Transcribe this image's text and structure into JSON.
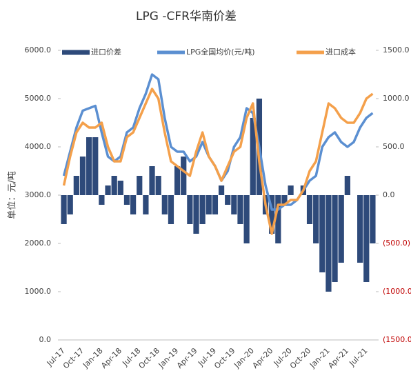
{
  "chart_data": {
    "type": "bar_line",
    "title": "LPG -CFR华南价差",
    "y_label": "单位：元/吨",
    "categories": [
      "Jul-17",
      null,
      null,
      "Oct-17",
      null,
      null,
      "Jan-18",
      null,
      null,
      "Apr-18",
      null,
      null,
      "Jul-18",
      null,
      null,
      "Oct-18",
      null,
      null,
      "Jan-19",
      null,
      null,
      "Apr-19",
      null,
      null,
      "Jul-19",
      null,
      null,
      "Oct-19",
      null,
      null,
      "Jan-20",
      null,
      null,
      "Apr-20",
      null,
      null,
      "Jul-20",
      null,
      null,
      "Oct-20",
      null,
      null,
      "Jan-21",
      null,
      null,
      "Apr-21",
      null,
      null,
      "Jul-21",
      null
    ],
    "series": [
      {
        "name": "进口价差",
        "type": "bar",
        "axis": "y2",
        "color": "#2e4a7a",
        "values": [
          -300,
          -200,
          200,
          400,
          600,
          600,
          -100,
          100,
          200,
          150,
          -100,
          -200,
          200,
          -200,
          300,
          200,
          -200,
          -300,
          300,
          400,
          -300,
          -400,
          -300,
          -200,
          -200,
          100,
          -100,
          -200,
          -300,
          -500,
          800,
          1000,
          -200,
          -400,
          -500,
          -100,
          100,
          0,
          100,
          -300,
          -500,
          -800,
          -1000,
          -900,
          -700,
          200,
          0,
          -700,
          -900,
          -500
        ]
      },
      {
        "name": "LPG全国均价(元/吨)",
        "type": "line",
        "color": "#5b8fd1",
        "values": [
          3400,
          3900,
          4400,
          4750,
          4800,
          4850,
          4300,
          3800,
          3700,
          3800,
          4300,
          4400,
          4800,
          5100,
          5500,
          5400,
          4600,
          4000,
          3900,
          3900,
          3700,
          3800,
          4100,
          3800,
          3600,
          3300,
          3500,
          4000,
          4200,
          4800,
          4700,
          4000,
          3200,
          2700,
          2700,
          2800,
          2800,
          2900,
          3100,
          3300,
          3400,
          4000,
          4200,
          4300,
          4100,
          4000,
          4100,
          4400,
          4600,
          4700
        ]
      },
      {
        "name": "进口成本",
        "type": "line",
        "color": "#f4a04b",
        "values": [
          3200,
          3800,
          4300,
          4500,
          4400,
          4400,
          4500,
          4000,
          3700,
          3700,
          4200,
          4300,
          4600,
          4900,
          5200,
          5000,
          4300,
          3700,
          3600,
          3500,
          3400,
          3900,
          4300,
          3800,
          3600,
          3300,
          3600,
          3900,
          4000,
          4600,
          4900,
          3700,
          2800,
          2200,
          2800,
          2800,
          2900,
          2900,
          3100,
          3500,
          3700,
          4300,
          4900,
          4800,
          4600,
          4500,
          4500,
          4700,
          5000,
          5100
        ]
      }
    ],
    "ylim": [
      0,
      6000
    ],
    "yticks": [
      {
        "value": 0,
        "label": "0.0"
      },
      {
        "value": 1000,
        "label": "1000.0"
      },
      {
        "value": 2000,
        "label": "2000.0"
      },
      {
        "value": 3000,
        "label": "3000.0"
      },
      {
        "value": 4000,
        "label": "4000.0"
      },
      {
        "value": 5000,
        "label": "5000.0"
      },
      {
        "value": 6000,
        "label": "6000.0"
      }
    ],
    "y2lim": [
      -1500,
      1500
    ],
    "y2ticks": [
      {
        "value": -1500,
        "label": "(1500.0)"
      },
      {
        "value": -1000,
        "label": "(1000.0)"
      },
      {
        "value": -500,
        "label": "(500.0)"
      },
      {
        "value": 0,
        "label": "0.0"
      },
      {
        "value": 500,
        "label": "500.0"
      },
      {
        "value": 1000,
        "label": "1000.0"
      },
      {
        "value": 1500,
        "label": "1500.0"
      }
    ]
  }
}
